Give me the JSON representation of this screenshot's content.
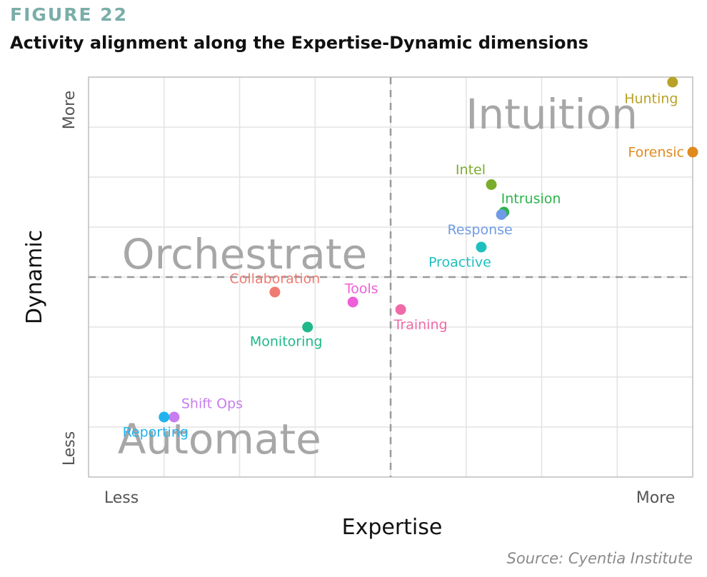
{
  "figure_label": "FIGURE 22",
  "title": "Activity alignment along the Expertise-Dynamic dimensions",
  "source": "Source: Cyentia Institute",
  "chart_data": {
    "type": "scatter",
    "xlabel": "Expertise",
    "ylabel": "Dynamic",
    "xlim": [
      0,
      12
    ],
    "ylim": [
      0,
      8
    ],
    "x_end_labels": [
      "Less",
      "More"
    ],
    "y_end_labels": [
      "Less",
      "More"
    ],
    "quadrant_dividers": {
      "x": 6,
      "y": 4
    },
    "grid": true,
    "quadrant_labels": [
      {
        "text": "Intuition",
        "x": 9.2,
        "y": 7.2
      },
      {
        "text": "Orchestrate",
        "x": 3.1,
        "y": 4.4
      },
      {
        "text": "Automate",
        "x": 2.6,
        "y": 0.7
      }
    ],
    "points": [
      {
        "label": "Hunting",
        "x": 11.6,
        "y": 7.9,
        "color": "#b8a227"
      },
      {
        "label": "Forensic",
        "x": 12.0,
        "y": 6.5,
        "color": "#e08a1e"
      },
      {
        "label": "Intel",
        "x": 8.0,
        "y": 5.85,
        "color": "#7cac2d"
      },
      {
        "label": "Intrusion",
        "x": 8.25,
        "y": 5.3,
        "color": "#2bb34a"
      },
      {
        "label": "Response",
        "x": 8.2,
        "y": 5.25,
        "color": "#6f9be6"
      },
      {
        "label": "Proactive",
        "x": 7.8,
        "y": 4.6,
        "color": "#1fbfbf"
      },
      {
        "label": "Collaboration",
        "x": 3.7,
        "y": 3.7,
        "color": "#f07b72"
      },
      {
        "label": "Tools",
        "x": 5.25,
        "y": 3.5,
        "color": "#ee5fd8"
      },
      {
        "label": "Training",
        "x": 6.2,
        "y": 3.35,
        "color": "#f06aa8"
      },
      {
        "label": "Monitoring",
        "x": 4.35,
        "y": 3.0,
        "color": "#1fb88a"
      },
      {
        "label": "Shift Ops",
        "x": 1.7,
        "y": 1.2,
        "color": "#c77dee"
      },
      {
        "label": "Reporting",
        "x": 1.5,
        "y": 1.2,
        "color": "#22b3ee"
      }
    ]
  }
}
